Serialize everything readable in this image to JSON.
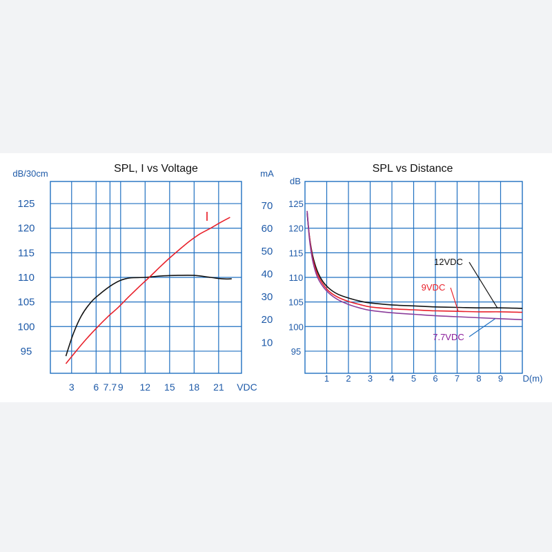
{
  "colors": {
    "grid": "#1e6fc0",
    "axis_text": "#1e5aa8",
    "title_text": "#111111",
    "series_black": "#111111",
    "series_red": "#e8202a",
    "series_purple": "#8a3c9a",
    "label_red": "#e8202a",
    "label_purple": "#8a1c9a",
    "background": "#f2f3f5",
    "panel": "#ffffff"
  },
  "chart_data": [
    {
      "type": "line",
      "title": "SPL, I vs Voltage",
      "ylabel_left": "dB/30cm",
      "ylabel_right": "mA",
      "xlabel": "VDC",
      "x_ticks": [
        3,
        6,
        7.7,
        9,
        12,
        15,
        18,
        21
      ],
      "x_tick_labels": [
        "3",
        "6",
        "7.7",
        "9",
        "12",
        "15",
        "18",
        "21"
      ],
      "xlim": [
        0.4,
        23.8
      ],
      "y_left_ticks": [
        95,
        100,
        105,
        110,
        115,
        120,
        125
      ],
      "y_left_tick_labels": [
        "95",
        "100",
        "105",
        "110",
        "115",
        "120",
        "125"
      ],
      "ylim_left": [
        90.5,
        129.5
      ],
      "y_right_ticks": [
        10,
        20,
        30,
        40,
        50,
        60,
        70
      ],
      "y_right_tick_labels": [
        "10",
        "20",
        "30",
        "40",
        "50",
        "60",
        "70"
      ],
      "ylim_right": [
        -3.5,
        80.5
      ],
      "grid": true,
      "annotations": [
        "I"
      ],
      "series": [
        {
          "axis": "left",
          "color": "black",
          "points": [
            [
              2.3,
              94
            ],
            [
              3.2,
              98.5
            ],
            [
              4.2,
              102.2
            ],
            [
              5.4,
              105
            ],
            [
              6.6,
              106.8
            ],
            [
              7.8,
              108.3
            ],
            [
              9,
              109.4
            ],
            [
              10.2,
              109.9
            ],
            [
              12,
              110
            ],
            [
              14,
              110.3
            ],
            [
              16,
              110.4
            ],
            [
              18,
              110.4
            ],
            [
              20,
              110
            ],
            [
              21.5,
              109.7
            ],
            [
              22.6,
              109.7
            ]
          ]
        },
        {
          "axis": "right",
          "color": "red",
          "points": [
            [
              2.3,
              0.7
            ],
            [
              3.5,
              6
            ],
            [
              4.8,
              11.5
            ],
            [
              6.1,
              16.5
            ],
            [
              7.5,
              21.5
            ],
            [
              8.6,
              25
            ],
            [
              10,
              30
            ],
            [
              11.3,
              34.5
            ],
            [
              12.5,
              38.5
            ],
            [
              13.8,
              43
            ],
            [
              15,
              47
            ],
            [
              16.3,
              51
            ],
            [
              17.5,
              54.5
            ],
            [
              18.7,
              57.5
            ],
            [
              20,
              60
            ],
            [
              21.2,
              62.5
            ],
            [
              22.4,
              64.8
            ]
          ]
        }
      ]
    },
    {
      "type": "line",
      "title": "SPL vs Distance",
      "ylabel": "dB",
      "xlabel": "D(m)",
      "x_ticks": [
        1,
        2,
        3,
        4,
        5,
        6,
        7,
        8,
        9
      ],
      "x_tick_labels": [
        "1",
        "2",
        "3",
        "4",
        "5",
        "6",
        "7",
        "8",
        "9"
      ],
      "xlim": [
        0,
        10
      ],
      "y_ticks": [
        95,
        100,
        105,
        110,
        115,
        120,
        125
      ],
      "y_tick_labels": [
        "95",
        "100",
        "105",
        "110",
        "115",
        "120",
        "125"
      ],
      "ylim": [
        90.5,
        129.5
      ],
      "grid": true,
      "series": [
        {
          "name": "12VDC",
          "color": "black",
          "points": [
            [
              0.1,
              123
            ],
            [
              0.2,
              118.5
            ],
            [
              0.35,
              114.5
            ],
            [
              0.55,
              111.5
            ],
            [
              0.8,
              109.3
            ],
            [
              1.1,
              107.8
            ],
            [
              1.5,
              106.6
            ],
            [
              2,
              105.8
            ],
            [
              2.5,
              105.2
            ],
            [
              3,
              104.8
            ],
            [
              4,
              104.4
            ],
            [
              5,
              104.2
            ],
            [
              6,
              104
            ],
            [
              7,
              103.9
            ],
            [
              8,
              103.8
            ],
            [
              9,
              103.8
            ],
            [
              10,
              103.7
            ]
          ]
        },
        {
          "name": "9VDC",
          "color": "red",
          "points": [
            [
              0.1,
              123.5
            ],
            [
              0.2,
              118.5
            ],
            [
              0.35,
              114
            ],
            [
              0.55,
              110.9
            ],
            [
              0.8,
              108.8
            ],
            [
              1.1,
              107.2
            ],
            [
              1.5,
              106
            ],
            [
              2,
              105.1
            ],
            [
              2.5,
              104.5
            ],
            [
              3,
              104
            ],
            [
              4,
              103.6
            ],
            [
              5,
              103.4
            ],
            [
              6,
              103.2
            ],
            [
              7,
              103.1
            ],
            [
              8,
              103
            ],
            [
              9,
              103
            ],
            [
              10,
              102.9
            ]
          ]
        },
        {
          "name": "7.7VDC",
          "color": "purple",
          "points": [
            [
              0.1,
              123.5
            ],
            [
              0.2,
              118
            ],
            [
              0.35,
              113.5
            ],
            [
              0.55,
              110.3
            ],
            [
              0.8,
              108.3
            ],
            [
              1.1,
              106.8
            ],
            [
              1.5,
              105.5
            ],
            [
              2,
              104.5
            ],
            [
              2.5,
              103.8
            ],
            [
              3,
              103.3
            ],
            [
              4,
              102.8
            ],
            [
              5,
              102.5
            ],
            [
              6,
              102.2
            ],
            [
              7,
              102
            ],
            [
              8,
              101.8
            ],
            [
              9,
              101.6
            ],
            [
              10,
              101.4
            ]
          ]
        }
      ]
    }
  ]
}
